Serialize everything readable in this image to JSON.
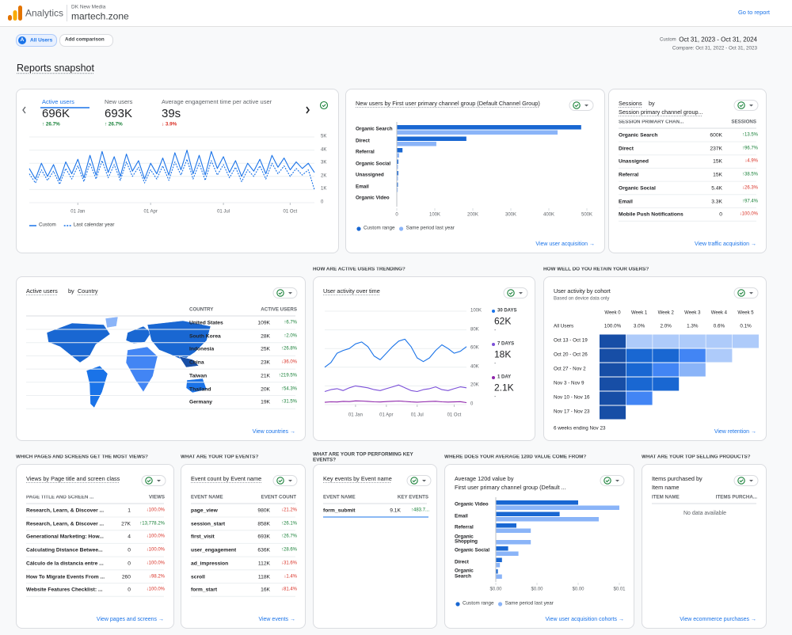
{
  "header": {
    "app": "Analytics",
    "account": "DK New Media",
    "property": "martech.zone",
    "link": "Go to report"
  },
  "toolbar": {
    "segment_letter": "A",
    "segment": "All Users",
    "add_comparison": "Add comparison",
    "date_mode": "Custom",
    "date_range": "Oct 31, 2023 - Oct 31, 2024",
    "compare": "Compare: Oct 31, 2022 - Oct 31, 2023"
  },
  "page_title": "Reports snapshot",
  "sections": [
    "HOW ARE ACTIVE USERS TRENDING?",
    "HOW WELL DO YOU RETAIN YOUR USERS?",
    "WHICH PAGES AND SCREENS GET THE MOST VIEWS?",
    "WHAT ARE YOUR TOP EVENTS?",
    "WHAT ARE YOUR TOP PERFORMING KEY EVENTS?",
    "WHERE DOES YOUR AVERAGE 120D VALUE COME FROM?",
    "WHAT ARE YOUR TOP SELLING PRODUCTS?"
  ],
  "overview": {
    "metrics": [
      {
        "label": "Active users",
        "value": "696K",
        "change": "↑ 26.7%"
      },
      {
        "label": "New users",
        "value": "693K",
        "change": "↑ 26.7%"
      },
      {
        "label": "Average engagement time per active user",
        "value": "39s",
        "change": "↓ 3.9%"
      }
    ],
    "chart": {
      "type": "line",
      "categories": [
        null,
        null,
        null,
        null,
        null,
        null,
        null,
        null,
        "01 Jan",
        null,
        null,
        null,
        null,
        null,
        null,
        null,
        null,
        null,
        null,
        null,
        "01 Apr",
        null,
        null,
        null,
        null,
        null,
        null,
        null,
        null,
        null,
        null,
        null,
        "01 Jul",
        null,
        null,
        null,
        null,
        null,
        null,
        null,
        null,
        null,
        null,
        "01 Oct",
        null,
        null,
        null,
        null
      ],
      "series": [
        {
          "name": "Custom",
          "color": "#1a73e8",
          "dashed": false,
          "values": [
            2600,
            1800,
            3000,
            2000,
            2900,
            1700,
            3100,
            2200,
            3300,
            1900,
            3600,
            2100,
            3900,
            2300,
            3500,
            2000,
            3700,
            2400,
            3200,
            1800,
            3000,
            2200,
            3400,
            2100,
            3800,
            2500,
            4000,
            2200,
            3600,
            2100,
            3900,
            2600,
            3500,
            2300,
            3200,
            2000,
            3000,
            2400,
            3300,
            2200,
            3600,
            2700,
            3400,
            2500,
            3100,
            2600,
            3000,
            2300
          ]
        },
        {
          "name": "Last calendar year",
          "color": "#1a73e8",
          "dashed": true,
          "values": [
            2200,
            1500,
            2500,
            1700,
            2400,
            1400,
            2600,
            1800,
            2800,
            1600,
            3000,
            1800,
            3200,
            1900,
            2900,
            1700,
            3100,
            2000,
            2700,
            1500,
            2500,
            1800,
            2800,
            1700,
            3100,
            2100,
            3300,
            1800,
            3000,
            1700,
            3200,
            2100,
            2900,
            1900,
            2700,
            1600,
            2500,
            2000,
            2800,
            1800,
            3000,
            2200,
            2800,
            2000,
            2600,
            2100,
            2500,
            1000
          ]
        }
      ],
      "ylim": [
        0,
        5000
      ],
      "yticks": [
        {
          "value": 5000,
          "label": "5K"
        },
        {
          "value": 4000,
          "label": "4K"
        },
        {
          "value": 3000,
          "label": "3K"
        },
        {
          "value": 2000,
          "label": "2K"
        },
        {
          "value": 1000,
          "label": "1K"
        },
        0
      ],
      "grid": true
    }
  },
  "new_users": {
    "title": "New users by First user primary channel group (Default Channel Group)",
    "chart": {
      "type": "bar",
      "categories": [
        "Organic Search",
        "Direct",
        "Referral",
        "Organic Social",
        "Unassigned",
        "Email",
        "Organic Video"
      ],
      "series": [
        {
          "name": "Custom range",
          "color": "#1967d2",
          "values": [
            485000,
            183000,
            15000,
            4000,
            4000,
            3000,
            800
          ]
        },
        {
          "name": "Same period last year",
          "color": "#8ab4f8",
          "values": [
            423000,
            104000,
            6000,
            3000,
            3000,
            2500,
            500
          ]
        }
      ],
      "xlim": [
        0,
        500000
      ],
      "xticks": [
        0,
        {
          "value": 100000,
          "label": "100K"
        },
        {
          "value": 200000,
          "label": "200K"
        },
        {
          "value": 300000,
          "label": "300K"
        },
        {
          "value": 400000,
          "label": "400K"
        },
        {
          "value": 500000,
          "label": "500K"
        }
      ]
    },
    "link": "View user acquisition →"
  },
  "sessions": {
    "title": "Sessions",
    "title_by": "by",
    "dimension": "Session primary channel group...",
    "columns": [
      "SESSION PRIMARY CHAN...",
      "SESSIONS"
    ],
    "rows": [
      [
        "Organic Search",
        "600K",
        "↑13.5%"
      ],
      [
        "Direct",
        "237K",
        "↑96.7%"
      ],
      [
        "Unassigned",
        "15K",
        "↓4.9%"
      ],
      [
        "Referral",
        "15K",
        "↑38.5%"
      ],
      [
        "Organic Social",
        "5.4K",
        "↓26.3%"
      ],
      [
        "Email",
        "3.3K",
        "↑97.4%"
      ],
      [
        "Mobile Push Notifications",
        "0",
        "↓100.0%"
      ]
    ],
    "link": "View traffic acquisition →"
  },
  "countries": {
    "title": "Active users",
    "title_by": "by",
    "dimension": "Country",
    "columns": [
      "COUNTRY",
      "ACTIVE USERS"
    ],
    "rows": [
      [
        "United States",
        "109K",
        "↑6.7%"
      ],
      [
        "South Korea",
        "28K",
        "↑2.0%"
      ],
      [
        "Indonesia",
        "25K",
        "↑26.8%"
      ],
      [
        "China",
        "23K",
        "↓36.0%"
      ],
      [
        "Taiwan",
        "21K",
        "↑219.5%"
      ],
      [
        "Thailand",
        "20K",
        "↑54.3%"
      ],
      [
        "Germany",
        "19K",
        "↑31.5%"
      ]
    ],
    "link": "View countries →"
  },
  "activity": {
    "title": "User activity over time",
    "chart": {
      "type": "line",
      "categories": [
        null,
        null,
        null,
        null,
        null,
        "01 Jan",
        null,
        null,
        null,
        null,
        "01 Apr",
        null,
        null,
        null,
        null,
        "01 Jul",
        null,
        null,
        null,
        null,
        null,
        "01 Oct",
        null,
        null
      ],
      "series": [
        {
          "name": "30 DAYS",
          "color": "#1a73e8",
          "latest": "62K",
          "change": "-",
          "values": [
            40000,
            45000,
            55000,
            58000,
            60000,
            65000,
            67000,
            62000,
            52000,
            48000,
            55000,
            62000,
            68000,
            70000,
            62000,
            50000,
            46000,
            50000,
            58000,
            64000,
            60000,
            55000,
            57000,
            62000
          ]
        },
        {
          "name": "7 DAYS",
          "color": "#7b4fd8",
          "latest": "18K",
          "change": "-",
          "values": [
            14000,
            16000,
            17000,
            15000,
            18000,
            20000,
            19000,
            18000,
            16000,
            15000,
            17000,
            19000,
            21000,
            18000,
            15000,
            14000,
            16000,
            17000,
            19000,
            16000,
            15000,
            17000,
            19000,
            18000
          ]
        },
        {
          "name": "1 DAY",
          "color": "#8e24aa",
          "latest": "2.1K",
          "change": "-",
          "values": [
            2500,
            3000,
            2800,
            3500,
            3200,
            4000,
            3800,
            3500,
            3000,
            2800,
            3200,
            3600,
            3800,
            3400,
            2900,
            2600,
            3000,
            3300,
            3600,
            3000,
            2700,
            2900,
            3100,
            2100
          ]
        }
      ],
      "ylim": [
        0,
        100000
      ],
      "yticks": [
        {
          "value": 100000,
          "label": "100K"
        },
        {
          "value": 80000,
          "label": "80K"
        },
        {
          "value": 60000,
          "label": "60K"
        },
        {
          "value": 40000,
          "label": "40K"
        },
        {
          "value": 20000,
          "label": "20K"
        },
        0
      ],
      "grid": true
    }
  },
  "retention": {
    "title": "User activity by cohort",
    "subtitle": "Based on device data only",
    "columns": [
      "Week 0",
      "Week 1",
      "Week 2",
      "Week 3",
      "Week 4",
      "Week 5"
    ],
    "all_users": {
      "label": "All Users",
      "values": [
        "100.0%",
        "3.0%",
        "2.0%",
        "1.3%",
        "0.6%",
        "0.1%"
      ]
    },
    "cohorts": [
      "Oct 13 - Oct 19",
      "Oct 20 - Oct 26",
      "Oct 27 - Nov 2",
      "Nov 3 - Nov 9",
      "Nov 10 - Nov 16",
      "Nov 17 - Nov 23"
    ],
    "footer": "6 weeks ending Nov 23",
    "link": "View retention →"
  },
  "pages": {
    "title": "Views by Page title and screen class",
    "columns": [
      "PAGE TITLE AND SCREEN ...",
      "VIEWS"
    ],
    "rows": [
      [
        "Research, Learn, & Discover ...",
        "1",
        "↓100.0%"
      ],
      [
        "Research, Learn, & Discover ...",
        "27K",
        "↑13,778.2%"
      ],
      [
        "Generational Marketing: How...",
        "4",
        "↓100.0%"
      ],
      [
        "Calculating Distance Betwee...",
        "0",
        "↓100.0%"
      ],
      [
        "Cálculo de la distancia entre ...",
        "0",
        "↓100.0%"
      ],
      [
        "How To Migrate Events From ...",
        "260",
        "↓98.2%"
      ],
      [
        "Website Features Checklist: ...",
        "0",
        "↓100.0%"
      ]
    ],
    "link": "View pages and screens →"
  },
  "events": {
    "title": "Event count by Event name",
    "columns": [
      "EVENT NAME",
      "EVENT COUNT"
    ],
    "rows": [
      [
        "page_view",
        "980K",
        "↓21.2%"
      ],
      [
        "session_start",
        "858K",
        "↑26.1%"
      ],
      [
        "first_visit",
        "693K",
        "↑26.7%"
      ],
      [
        "user_engagement",
        "636K",
        "↑28.6%"
      ],
      [
        "ad_impression",
        "112K",
        "↓31.6%"
      ],
      [
        "scroll",
        "118K",
        "↓1.4%"
      ],
      [
        "form_start",
        "16K",
        "↓81.4%"
      ]
    ],
    "link": "View events →"
  },
  "key_events": {
    "title": "Key events by Event name",
    "columns": [
      "EVENT NAME",
      "KEY EVENTS"
    ],
    "rows": [
      [
        "form_submit",
        "9.1K",
        "↑483.7..."
      ]
    ]
  },
  "value_120d": {
    "title": "Average 120d value by",
    "dimension": "First user primary channel group (Default ...",
    "chart": {
      "type": "bar",
      "categories": [
        "Organic Video",
        "Email",
        "Referral",
        "Organic Shopping",
        "Organic Social",
        "Direct",
        "Organic Search"
      ],
      "series": [
        {
          "name": "Custom range",
          "color": "#1967d2",
          "values": [
            0.004,
            0.0031,
            0.001,
            0,
            0.0006,
            0.0003,
            0.0001
          ]
        },
        {
          "name": "Same period last year",
          "color": "#8ab4f8",
          "values": [
            0.006,
            0.005,
            0.0017,
            0.0017,
            0.0011,
            0.0002,
            0.0003
          ]
        }
      ],
      "xlim": [
        0,
        0.006
      ],
      "xticks": [
        {
          "value": 0,
          "label": "$0.00"
        },
        {
          "value": 0.002,
          "label": "$0.00"
        },
        {
          "value": 0.004,
          "label": "$0.00"
        },
        {
          "value": 0.006,
          "label": "$0.01"
        }
      ]
    },
    "link": "View user acquisition cohorts →"
  },
  "products": {
    "title": "Items purchased by",
    "dimension": "Item name",
    "columns": [
      "ITEM NAME",
      "ITEMS PURCHA..."
    ],
    "empty": "No data available",
    "link": "View ecommerce purchases →"
  }
}
